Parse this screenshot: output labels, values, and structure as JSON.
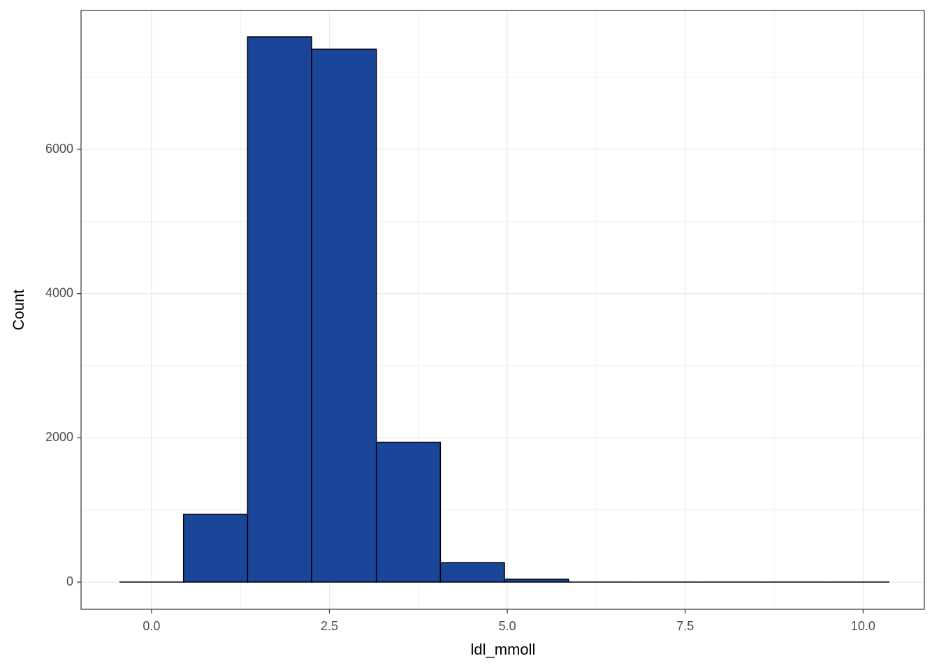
{
  "chart_data": {
    "type": "histogram",
    "x_label": "ldl_mmoll",
    "y_label": "Count",
    "bins": [
      -0.45,
      0.45,
      1.35,
      2.25,
      3.16,
      4.06,
      4.96,
      5.86,
      6.76,
      7.67,
      8.57,
      9.47,
      10.37
    ],
    "counts": [
      0,
      940,
      7560,
      7390,
      1940,
      270,
      40,
      0,
      0,
      0,
      0,
      0
    ],
    "color": "#1a4599",
    "edgecolor": "#000000",
    "xlim": [
      -0.99,
      10.86
    ],
    "ylim": [
      -377,
      7926
    ],
    "xticks": [
      {
        "value": 0,
        "label": "0.0"
      },
      2.5,
      {
        "value": 5,
        "label": "5.0"
      },
      7.5,
      {
        "value": 10,
        "label": "10.0"
      }
    ],
    "yticks": [
      0,
      2000,
      4000,
      6000
    ],
    "grid": true
  }
}
